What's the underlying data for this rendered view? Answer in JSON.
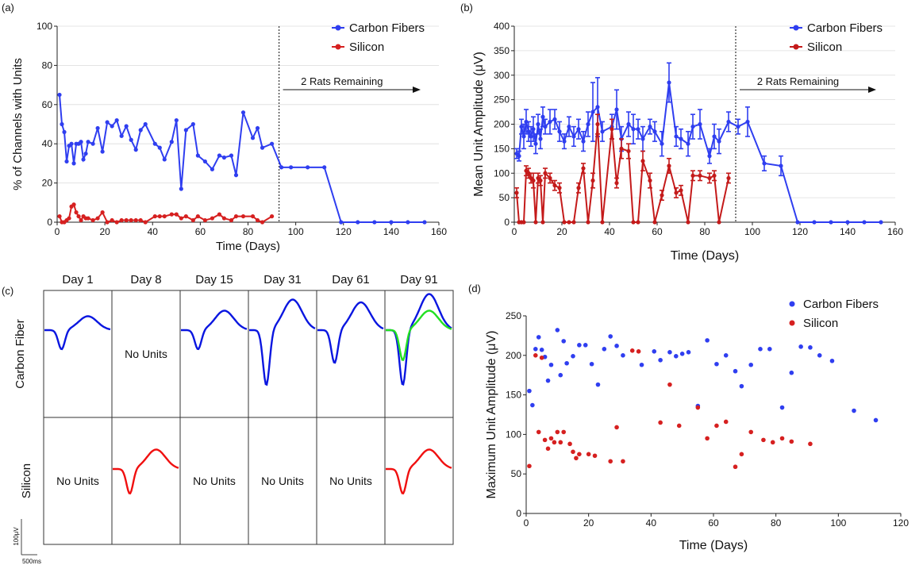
{
  "chart_data": [
    {
      "panel": "(a)",
      "type": "line",
      "xlabel": "Time (Days)",
      "ylabel": "% of Channels with Units",
      "xlim": [
        0,
        160
      ],
      "ylim": [
        0,
        100
      ],
      "xticks": [
        0,
        20,
        40,
        60,
        80,
        100,
        120,
        140,
        160
      ],
      "yticks": [
        0,
        20,
        40,
        60,
        80,
        100
      ],
      "grid": "horizontal",
      "legend": "top-right",
      "annotation": "2 Rats Remaining",
      "vline_x": 93,
      "series": [
        {
          "name": "Carbon Fibers",
          "color": "#2f3ef0",
          "x": [
            1,
            2,
            3,
            4,
            5,
            6,
            7,
            8,
            9,
            10,
            11,
            12,
            13,
            15,
            17,
            19,
            21,
            23,
            25,
            27,
            29,
            31,
            33,
            35,
            37,
            41,
            43,
            45,
            48,
            50,
            52,
            54,
            57,
            59,
            62,
            65,
            68,
            70,
            73,
            75,
            78,
            82,
            84,
            86,
            90,
            94,
            98,
            105,
            112,
            119,
            126,
            133,
            140,
            147,
            154
          ],
          "y": [
            65,
            50,
            46,
            31,
            39,
            40,
            30,
            40,
            40,
            41,
            32,
            35,
            41,
            40,
            48,
            36,
            51,
            49,
            52,
            44,
            49,
            42,
            37,
            47,
            50,
            40,
            38,
            32,
            41,
            52,
            17,
            47,
            50,
            34,
            31,
            27,
            34,
            33,
            34,
            24,
            56,
            43,
            48,
            38,
            40,
            28,
            28,
            28,
            28,
            0,
            0,
            0,
            0,
            0,
            0
          ]
        },
        {
          "name": "Silicon",
          "color": "#d62020",
          "x": [
            1,
            2,
            3,
            4,
            5,
            6,
            7,
            8,
            9,
            10,
            11,
            12,
            13,
            15,
            17,
            19,
            21,
            23,
            25,
            27,
            29,
            31,
            33,
            35,
            37,
            41,
            43,
            45,
            48,
            50,
            52,
            54,
            57,
            59,
            62,
            65,
            68,
            70,
            73,
            75,
            78,
            82,
            84,
            86,
            90
          ],
          "y": [
            3,
            0,
            0,
            1,
            2,
            8,
            9,
            5,
            3,
            1,
            3,
            2,
            2,
            1,
            2,
            5,
            0,
            1,
            0,
            1,
            1,
            1,
            1,
            1,
            0,
            3,
            3,
            3,
            4,
            4,
            2,
            3,
            1,
            3,
            1,
            2,
            4,
            2,
            1,
            3,
            3,
            3,
            1,
            0,
            3
          ]
        }
      ]
    },
    {
      "panel": "(b)",
      "type": "line",
      "xlabel": "Time (Days)",
      "ylabel": "Mean Unit Amplitude (μV)",
      "xlim": [
        0,
        160
      ],
      "ylim": [
        0,
        400
      ],
      "xticks": [
        0,
        20,
        40,
        60,
        80,
        100,
        120,
        140,
        160
      ],
      "yticks": [
        0,
        50,
        100,
        150,
        200,
        250,
        300,
        350,
        400
      ],
      "grid": "horizontal",
      "legend": "top-right",
      "annotation": "2 Rats Remaining",
      "vline_x": 93,
      "series": [
        {
          "name": "Carbon Fibers",
          "color": "#2f3ef0",
          "x": [
            1,
            2,
            3,
            4,
            5,
            6,
            7,
            8,
            9,
            10,
            11,
            12,
            13,
            15,
            17,
            19,
            21,
            23,
            25,
            27,
            29,
            31,
            33,
            35,
            37,
            41,
            43,
            45,
            48,
            50,
            52,
            54,
            57,
            59,
            62,
            65,
            68,
            70,
            73,
            75,
            78,
            82,
            84,
            86,
            90,
            94,
            98,
            105,
            112,
            119,
            126,
            133,
            140,
            147,
            154
          ],
          "y": [
            140,
            135,
            195,
            175,
            205,
            185,
            175,
            190,
            160,
            200,
            170,
            215,
            195,
            205,
            210,
            185,
            165,
            195,
            175,
            190,
            165,
            200,
            225,
            235,
            185,
            195,
            230,
            170,
            200,
            190,
            190,
            170,
            195,
            185,
            160,
            285,
            175,
            170,
            160,
            195,
            200,
            135,
            175,
            165,
            205,
            195,
            205,
            120,
            115,
            0,
            0,
            0,
            0,
            0,
            0
          ],
          "err": [
            10,
            10,
            15,
            25,
            25,
            20,
            20,
            25,
            20,
            20,
            20,
            20,
            15,
            25,
            20,
            20,
            15,
            20,
            20,
            20,
            20,
            25,
            60,
            60,
            20,
            25,
            40,
            25,
            25,
            30,
            20,
            25,
            15,
            20,
            25,
            40,
            20,
            20,
            25,
            25,
            30,
            15,
            25,
            25,
            20,
            15,
            30,
            15,
            20,
            0,
            0,
            0,
            0,
            0,
            0
          ]
        },
        {
          "name": "Silicon",
          "color": "#c41a1a",
          "x": [
            1,
            2,
            3,
            4,
            5,
            6,
            7,
            8,
            9,
            10,
            11,
            12,
            13,
            15,
            17,
            19,
            21,
            23,
            25,
            27,
            29,
            31,
            33,
            35,
            37,
            41,
            43,
            45,
            48,
            50,
            52,
            54,
            57,
            59,
            62,
            65,
            68,
            70,
            73,
            75,
            78,
            82,
            84,
            86,
            90
          ],
          "y": [
            60,
            0,
            0,
            0,
            105,
            100,
            90,
            85,
            0,
            90,
            85,
            0,
            100,
            90,
            75,
            70,
            0,
            0,
            0,
            70,
            110,
            0,
            85,
            200,
            0,
            190,
            80,
            150,
            145,
            0,
            0,
            125,
            85,
            0,
            55,
            115,
            60,
            65,
            0,
            95,
            95,
            90,
            95,
            0,
            90
          ],
          "err": [
            10,
            0,
            0,
            0,
            10,
            10,
            10,
            15,
            0,
            10,
            10,
            0,
            10,
            10,
            10,
            10,
            0,
            0,
            0,
            10,
            10,
            0,
            15,
            20,
            0,
            20,
            10,
            20,
            15,
            0,
            0,
            20,
            15,
            0,
            10,
            15,
            10,
            10,
            0,
            10,
            10,
            10,
            10,
            0,
            10
          ]
        }
      ]
    },
    {
      "panel": "(c)",
      "type": "table",
      "columns": [
        "Day 1",
        "Day 8",
        "Day 15",
        "Day 31",
        "Day 61",
        "Day 91"
      ],
      "rows": [
        "Carbon Fiber",
        "Silicon"
      ],
      "no_units_label": "No Units",
      "cells": [
        [
          {
            "kind": "wave",
            "colors": [
              "#0a16e0"
            ],
            "trough": 0.35,
            "peak": 0.25
          },
          {
            "kind": "text"
          },
          {
            "kind": "wave",
            "colors": [
              "#0a16e0"
            ],
            "trough": 0.35,
            "peak": 0.35
          },
          {
            "kind": "wave",
            "colors": [
              "#0a16e0"
            ],
            "trough": 1.0,
            "peak": 0.55
          },
          {
            "kind": "wave",
            "colors": [
              "#0a16e0"
            ],
            "trough": 0.6,
            "peak": 0.5
          },
          {
            "kind": "wave",
            "colors": [
              "#0a16e0",
              "#22e022"
            ],
            "trough": 1.0,
            "peak": 0.65,
            "trough2": 0.55,
            "peak2": 0.35
          }
        ],
        [
          {
            "kind": "text"
          },
          {
            "kind": "wave",
            "colors": [
              "#f01010"
            ],
            "trough": 0.45,
            "peak": 0.35
          },
          {
            "kind": "text"
          },
          {
            "kind": "text"
          },
          {
            "kind": "text"
          },
          {
            "kind": "wave",
            "colors": [
              "#f01010"
            ],
            "trough": 0.45,
            "peak": 0.35
          }
        ]
      ],
      "scale_bar": {
        "v_label": "100μV",
        "h_label": "500ms"
      }
    },
    {
      "panel": "(d)",
      "type": "scatter",
      "xlabel": "Time (Days)",
      "ylabel": "Maximum Unit Amplitude (μV)",
      "xlim": [
        0,
        120
      ],
      "ylim": [
        0,
        250
      ],
      "xticks": [
        0,
        20,
        40,
        60,
        80,
        100,
        120
      ],
      "yticks": [
        0,
        50,
        100,
        150,
        200,
        250
      ],
      "grid": "none",
      "legend": "top-right",
      "series": [
        {
          "name": "Carbon Fibers",
          "color": "#2f3ef0",
          "x": [
            1,
            2,
            3,
            4,
            5,
            6,
            7,
            8,
            10,
            11,
            12,
            13,
            15,
            17,
            19,
            21,
            23,
            25,
            27,
            29,
            31,
            37,
            41,
            43,
            46,
            48,
            50,
            52,
            55,
            58,
            61,
            64,
            67,
            69,
            72,
            75,
            78,
            82,
            85,
            88,
            91,
            94,
            98,
            105,
            112
          ],
          "y": [
            155,
            137,
            208,
            223,
            207,
            198,
            168,
            188,
            232,
            175,
            218,
            190,
            199,
            213,
            213,
            189,
            163,
            208,
            224,
            212,
            200,
            188,
            205,
            194,
            204,
            199,
            202,
            204,
            136,
            219,
            189,
            200,
            180,
            161,
            188,
            208,
            208,
            134,
            178,
            211,
            210,
            200,
            193,
            130,
            118
          ]
        },
        {
          "name": "Silicon",
          "color": "#d62020",
          "x": [
            1,
            3,
            4,
            5,
            6,
            7,
            8,
            9,
            10,
            11,
            12,
            14,
            15,
            16,
            17,
            20,
            22,
            27,
            29,
            31,
            34,
            36,
            43,
            46,
            49,
            55,
            58,
            61,
            64,
            67,
            69,
            72,
            76,
            79,
            82,
            85,
            91
          ],
          "y": [
            60,
            200,
            103,
            197,
            93,
            82,
            95,
            90,
            103,
            90,
            103,
            88,
            78,
            70,
            75,
            75,
            73,
            66,
            109,
            66,
            206,
            205,
            115,
            163,
            111,
            134,
            95,
            111,
            116,
            59,
            75,
            103,
            93,
            90,
            95,
            91,
            88
          ]
        }
      ]
    }
  ]
}
